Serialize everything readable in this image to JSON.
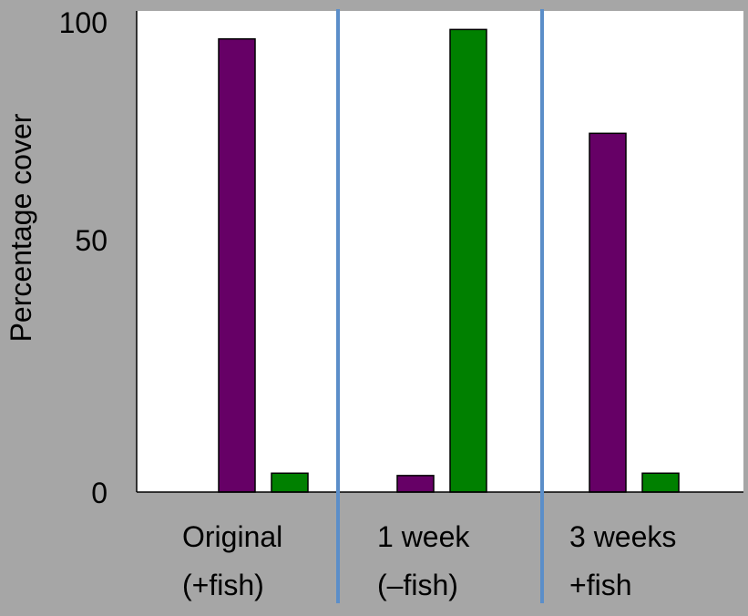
{
  "chart_data": {
    "type": "bar",
    "title": "",
    "xlabel": "",
    "ylabel": "Percentage cover",
    "ylim": [
      0,
      100
    ],
    "yticks": [
      "0",
      "50",
      "100"
    ],
    "categories": [
      {
        "line1": "Original",
        "line2": "(+fish)"
      },
      {
        "line1": "1 week",
        "line2": "(–fish)"
      },
      {
        "line1": "3 weeks",
        "line2": "+fish"
      }
    ],
    "series": [
      {
        "color": "#660066",
        "values": [
          96,
          3.5,
          76
        ]
      },
      {
        "color": "#008000",
        "values": [
          4,
          98,
          4
        ]
      }
    ],
    "grid": false,
    "legend": "none",
    "colors": {
      "background": "#a6a6a6",
      "plot_area": "#ffffff",
      "separator": "#5b8ec9"
    }
  }
}
